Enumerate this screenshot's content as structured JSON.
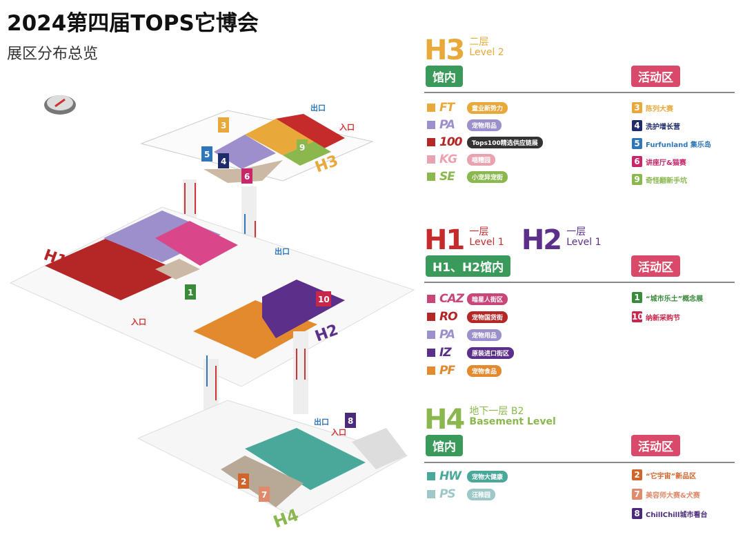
{
  "title": "2024第四届TOPS它博会",
  "subtitle": "展区分布总览",
  "colors": {
    "inside_pill": "#3a9a5c",
    "activity_pill": "#d94a6a"
  },
  "h3": {
    "code": "H3",
    "floor": "二层",
    "level": "Level 2",
    "inside": "馆内",
    "activity": "活动区",
    "items": [
      {
        "logo": "FT",
        "label": "童业新势力",
        "color": "#e8a93a"
      },
      {
        "logo": "PA",
        "label": "宠物用品",
        "color": "#9d8fcb"
      },
      {
        "logo": "100",
        "label": "Tops100精选供应链展",
        "color": "#b52626"
      },
      {
        "logo": "KG",
        "label": "喵糟园",
        "color": "#e9a3b0"
      },
      {
        "logo": "SE",
        "label": "小宠异宠街",
        "color": "#8ab84e"
      }
    ],
    "activities": [
      {
        "num": "3",
        "label": "陈列大赛",
        "color": "#e8a93a"
      },
      {
        "num": "4",
        "label": "洗护增长营",
        "color": "#1f2c6b"
      },
      {
        "num": "5",
        "label": "Furfunland 集乐岛",
        "color": "#2f76b8"
      },
      {
        "num": "6",
        "label": "讲座厅&猫赛",
        "color": "#c8266a"
      },
      {
        "num": "9",
        "label": "奇怪翻新手坑",
        "color": "#8ab84e"
      }
    ]
  },
  "h12": {
    "code1": "H1",
    "floor1": "一层",
    "level1": "Level 1",
    "code2": "H2",
    "floor2": "一层",
    "level2": "Level 1",
    "inside": "H1、H2馆内",
    "activity": "活动区",
    "items": [
      {
        "logo": "CAZ",
        "label": "暗星人街区",
        "color": "#c9467a"
      },
      {
        "logo": "RO",
        "label": "宠物国货街",
        "color": "#b52626"
      },
      {
        "logo": "PA",
        "label": "宠物用品",
        "color": "#9d8fcb"
      },
      {
        "logo": "IZ",
        "label": "原装进口街区",
        "color": "#5b2f8a"
      },
      {
        "logo": "PF",
        "label": "宠物食品",
        "color": "#e38a2e"
      }
    ],
    "activities": [
      {
        "num": "1",
        "label": "“城市乐土”概念展",
        "color": "#3a8a3c"
      },
      {
        "num": "10",
        "label": "纳新采购节",
        "color": "#c8264a"
      }
    ]
  },
  "h4": {
    "code": "H4",
    "floor": "地下一层 B2",
    "level": "Basement Level",
    "inside": "馆内",
    "activity": "活动区",
    "items": [
      {
        "logo": "HW",
        "label": "宠物大健康",
        "color": "#4aa89a"
      },
      {
        "logo": "PS",
        "label": "汪稚园",
        "color": "#9ec8c8"
      }
    ],
    "activities": [
      {
        "num": "2",
        "label": "“它宇宙”新品区",
        "color": "#d0642a"
      },
      {
        "num": "7",
        "label": "美容师大赛&犬赛",
        "color": "#df8a6a"
      },
      {
        "num": "8",
        "label": "ChillChill城市看台",
        "color": "#4a2a7a"
      }
    ]
  },
  "map": {
    "exit": "出口",
    "entry": "入口",
    "h3_label": "H3 二层 Level 2",
    "h1_label": "H1 一层 Level 1",
    "h2_label": "H2 一层 Level 1",
    "h4_label": "H4 地下一层 B2 Basement Level"
  }
}
